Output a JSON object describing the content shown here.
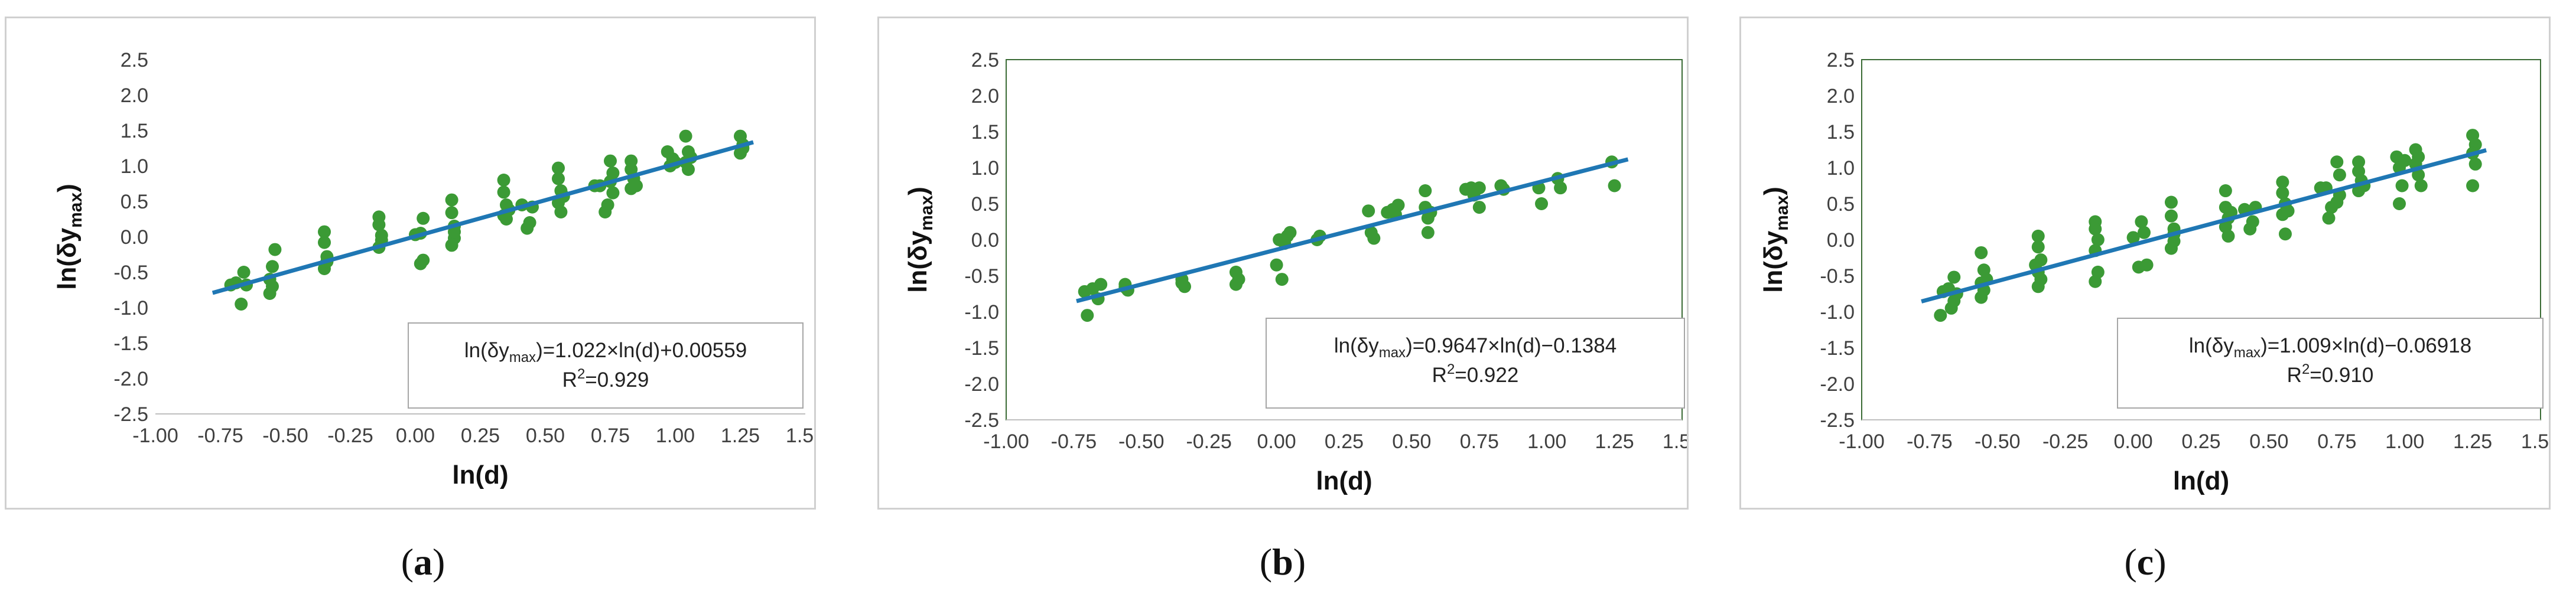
{
  "chart_data": [
    {
      "type": "scatter",
      "panel_label": "a",
      "xlabel": "ln(d)",
      "ylabel": "ln(δy",
      "ylabel_sub": "max",
      "ylabel_close": ")",
      "xlim": [
        -1.0,
        1.5
      ],
      "ylim": [
        -2.5,
        2.5
      ],
      "xticks": [
        "-1.00",
        "-0.75",
        "-0.50",
        "-0.25",
        "0.00",
        "0.25",
        "0.50",
        "0.75",
        "1.00",
        "1.25",
        "1.50"
      ],
      "yticks": [
        "2.5",
        "2.0",
        "1.5",
        "1.0",
        "0.5",
        "0.0",
        "-0.5",
        "-1.0",
        "-1.5",
        "-2.0",
        "-2.5"
      ],
      "point_color": "#3b9a35",
      "line_color": "#1f77b4",
      "fit": {
        "slope": 1.022,
        "intercept": 0.00559,
        "x_range": [
          -0.78,
          1.3
        ]
      },
      "equation": {
        "lhs": "ln(δy",
        "sub": "max",
        "rhs": ")=1.022×ln(d)+0.00559"
      },
      "r2": {
        "prefix": "R",
        "sup": "2",
        "value": "=0.929"
      },
      "series": [
        {
          "name": "data",
          "points": [
            [
              -0.71,
              -0.68
            ],
            [
              -0.69,
              -0.65
            ],
            [
              -0.67,
              -0.95
            ],
            [
              -0.66,
              -0.5
            ],
            [
              -0.65,
              -0.68
            ],
            [
              -0.56,
              -0.6
            ],
            [
              -0.56,
              -0.8
            ],
            [
              -0.55,
              -0.42
            ],
            [
              -0.54,
              -0.18
            ],
            [
              -0.55,
              -0.7
            ],
            [
              -0.35,
              0.07
            ],
            [
              -0.35,
              -0.08
            ],
            [
              -0.34,
              -0.28
            ],
            [
              -0.35,
              -0.45
            ],
            [
              -0.34,
              -0.35
            ],
            [
              -0.14,
              0.28
            ],
            [
              -0.14,
              0.17
            ],
            [
              -0.13,
              0.02
            ],
            [
              -0.14,
              -0.15
            ],
            [
              -0.13,
              -0.05
            ],
            [
              0.0,
              0.03
            ],
            [
              0.02,
              0.05
            ],
            [
              0.03,
              -0.33
            ],
            [
              0.02,
              -0.38
            ],
            [
              0.03,
              0.26
            ],
            [
              0.14,
              0.52
            ],
            [
              0.14,
              0.34
            ],
            [
              0.15,
              0.15
            ],
            [
              0.15,
              -0.02
            ],
            [
              0.14,
              -0.12
            ],
            [
              0.15,
              0.07
            ],
            [
              0.34,
              0.8
            ],
            [
              0.34,
              0.63
            ],
            [
              0.35,
              0.45
            ],
            [
              0.34,
              0.3
            ],
            [
              0.35,
              0.25
            ],
            [
              0.36,
              0.38
            ],
            [
              0.41,
              0.45
            ],
            [
              0.43,
              0.12
            ],
            [
              0.44,
              0.2
            ],
            [
              0.45,
              0.42
            ],
            [
              0.55,
              0.97
            ],
            [
              0.55,
              0.82
            ],
            [
              0.56,
              0.65
            ],
            [
              0.55,
              0.48
            ],
            [
              0.56,
              0.35
            ],
            [
              0.57,
              0.57
            ],
            [
              0.69,
              0.72
            ],
            [
              0.71,
              0.72
            ],
            [
              0.73,
              0.35
            ],
            [
              0.74,
              0.45
            ],
            [
              0.75,
              1.07
            ],
            [
              0.76,
              0.9
            ],
            [
              0.76,
              0.62
            ],
            [
              0.75,
              0.78
            ],
            [
              0.83,
              1.07
            ],
            [
              0.83,
              0.95
            ],
            [
              0.84,
              0.82
            ],
            [
              0.83,
              0.68
            ],
            [
              0.85,
              0.72
            ],
            [
              0.97,
              1.2
            ],
            [
              0.98,
              1.0
            ],
            [
              0.99,
              1.1
            ],
            [
              1.0,
              1.05
            ],
            [
              1.04,
              1.42
            ],
            [
              1.05,
              1.2
            ],
            [
              1.04,
              1.05
            ],
            [
              1.05,
              0.95
            ],
            [
              1.06,
              1.12
            ],
            [
              1.25,
              1.42
            ],
            [
              1.26,
              1.3
            ],
            [
              1.25,
              1.18
            ],
            [
              1.26,
              1.25
            ]
          ]
        }
      ]
    },
    {
      "type": "scatter",
      "panel_label": "b",
      "xlabel": "ln(d)",
      "ylabel": "ln(δy",
      "ylabel_sub": "max",
      "ylabel_close": ")",
      "xlim": [
        -1.0,
        1.5
      ],
      "ylim": [
        -2.5,
        2.5
      ],
      "xticks": [
        "-1.00",
        "-0.75",
        "-0.50",
        "-0.25",
        "0.00",
        "0.25",
        "0.50",
        "0.75",
        "1.00",
        "1.25",
        "1.50"
      ],
      "yticks": [
        "2.5",
        "2.0",
        "1.5",
        "1.0",
        "0.5",
        "0.0",
        "-0.5",
        "-1.0",
        "-1.5",
        "-2.0",
        "-2.5"
      ],
      "point_color": "#3b9a35",
      "line_color": "#1f77b4",
      "fit": {
        "slope": 0.9647,
        "intercept": -0.1384,
        "x_range": [
          -0.74,
          1.3
        ]
      },
      "equation": {
        "lhs": "ln(δy",
        "sub": "max",
        "rhs": ")=0.9647×ln(d)−0.1384"
      },
      "r2": {
        "prefix": "R",
        "sup": "2",
        "value": "=0.922"
      },
      "series": [
        {
          "name": "data",
          "points": [
            [
              -0.71,
              -0.72
            ],
            [
              -0.7,
              -1.05
            ],
            [
              -0.68,
              -0.68
            ],
            [
              -0.66,
              -0.82
            ],
            [
              -0.65,
              -0.62
            ],
            [
              -0.56,
              -0.62
            ],
            [
              -0.55,
              -0.7
            ],
            [
              -0.56,
              -0.66
            ],
            [
              -0.35,
              -0.55
            ],
            [
              -0.34,
              -0.65
            ],
            [
              -0.35,
              -0.6
            ],
            [
              -0.15,
              -0.45
            ],
            [
              -0.14,
              -0.55
            ],
            [
              -0.15,
              -0.62
            ],
            [
              0.0,
              -0.35
            ],
            [
              0.01,
              0.0
            ],
            [
              0.02,
              -0.55
            ],
            [
              0.04,
              0.05
            ],
            [
              0.05,
              0.1
            ],
            [
              0.03,
              -0.05
            ],
            [
              0.15,
              0.0
            ],
            [
              0.16,
              0.05
            ],
            [
              0.34,
              0.4
            ],
            [
              0.35,
              0.1
            ],
            [
              0.36,
              0.02
            ],
            [
              0.41,
              0.38
            ],
            [
              0.43,
              0.42
            ],
            [
              0.45,
              0.48
            ],
            [
              0.44,
              0.35
            ],
            [
              0.55,
              0.68
            ],
            [
              0.55,
              0.45
            ],
            [
              0.56,
              0.3
            ],
            [
              0.57,
              0.38
            ],
            [
              0.56,
              0.1
            ],
            [
              0.7,
              0.7
            ],
            [
              0.72,
              0.72
            ],
            [
              0.73,
              0.62
            ],
            [
              0.75,
              0.72
            ],
            [
              0.75,
              0.45
            ],
            [
              0.83,
              0.75
            ],
            [
              0.84,
              0.7
            ],
            [
              0.97,
              0.72
            ],
            [
              0.98,
              0.5
            ],
            [
              1.04,
              0.85
            ],
            [
              1.05,
              0.72
            ],
            [
              1.24,
              1.08
            ],
            [
              1.25,
              0.75
            ]
          ]
        }
      ]
    },
    {
      "type": "scatter",
      "panel_label": "c",
      "xlabel": "ln(d)",
      "ylabel": "ln(δy",
      "ylabel_sub": "max",
      "ylabel_close": ")",
      "xlim": [
        -1.0,
        1.5
      ],
      "ylim": [
        -2.5,
        2.5
      ],
      "xticks": [
        "-1.00",
        "-0.75",
        "-0.50",
        "-0.25",
        "0.00",
        "0.25",
        "0.50",
        "0.75",
        "1.00",
        "1.25",
        "1.50"
      ],
      "yticks": [
        "2.5",
        "2.0",
        "1.5",
        "1.0",
        "0.5",
        "0.0",
        "-0.5",
        "-1.0",
        "-1.5",
        "-2.0",
        "-2.5"
      ],
      "point_color": "#3b9a35",
      "line_color": "#1f77b4",
      "fit": {
        "slope": 1.009,
        "intercept": -0.06918,
        "x_range": [
          -0.78,
          1.3
        ]
      },
      "equation": {
        "lhs": "ln(δy",
        "sub": "max",
        "rhs": ")=1.009×ln(d)−0.06918"
      },
      "r2": {
        "prefix": "R",
        "sup": "2",
        "value": "=0.910"
      },
      "series": [
        {
          "name": "data",
          "points": [
            [
              -0.71,
              -1.05
            ],
            [
              -0.7,
              -0.72
            ],
            [
              -0.68,
              -0.68
            ],
            [
              -0.67,
              -0.95
            ],
            [
              -0.66,
              -0.85
            ],
            [
              -0.66,
              -0.52
            ],
            [
              -0.65,
              -0.75
            ],
            [
              -0.56,
              -0.18
            ],
            [
              -0.55,
              -0.42
            ],
            [
              -0.56,
              -0.6
            ],
            [
              -0.55,
              -0.7
            ],
            [
              -0.56,
              -0.8
            ],
            [
              -0.54,
              -0.55
            ],
            [
              -0.35,
              0.05
            ],
            [
              -0.35,
              -0.1
            ],
            [
              -0.34,
              -0.28
            ],
            [
              -0.35,
              -0.45
            ],
            [
              -0.34,
              -0.55
            ],
            [
              -0.35,
              -0.65
            ],
            [
              -0.36,
              -0.35
            ],
            [
              -0.14,
              0.25
            ],
            [
              -0.14,
              0.15
            ],
            [
              -0.13,
              0.0
            ],
            [
              -0.14,
              -0.15
            ],
            [
              -0.13,
              -0.45
            ],
            [
              -0.14,
              -0.58
            ],
            [
              0.0,
              0.03
            ],
            [
              0.02,
              -0.38
            ],
            [
              0.03,
              0.25
            ],
            [
              0.05,
              -0.35
            ],
            [
              0.04,
              0.1
            ],
            [
              0.14,
              0.52
            ],
            [
              0.14,
              0.33
            ],
            [
              0.15,
              0.15
            ],
            [
              0.15,
              -0.02
            ],
            [
              0.14,
              -0.12
            ],
            [
              0.15,
              0.08
            ],
            [
              0.34,
              0.68
            ],
            [
              0.34,
              0.45
            ],
            [
              0.35,
              0.3
            ],
            [
              0.34,
              0.18
            ],
            [
              0.35,
              0.05
            ],
            [
              0.36,
              0.38
            ],
            [
              0.41,
              0.42
            ],
            [
              0.43,
              0.15
            ],
            [
              0.44,
              0.25
            ],
            [
              0.45,
              0.45
            ],
            [
              0.55,
              0.8
            ],
            [
              0.55,
              0.65
            ],
            [
              0.56,
              0.5
            ],
            [
              0.55,
              0.35
            ],
            [
              0.56,
              0.08
            ],
            [
              0.57,
              0.4
            ],
            [
              0.69,
              0.72
            ],
            [
              0.71,
              0.72
            ],
            [
              0.72,
              0.3
            ],
            [
              0.73,
              0.45
            ],
            [
              0.75,
              1.08
            ],
            [
              0.76,
              0.9
            ],
            [
              0.76,
              0.62
            ],
            [
              0.75,
              0.52
            ],
            [
              0.83,
              1.08
            ],
            [
              0.83,
              0.95
            ],
            [
              0.84,
              0.82
            ],
            [
              0.83,
              0.68
            ],
            [
              0.85,
              0.75
            ],
            [
              0.97,
              1.15
            ],
            [
              0.98,
              1.0
            ],
            [
              0.99,
              0.75
            ],
            [
              0.98,
              0.5
            ],
            [
              1.0,
              1.1
            ],
            [
              1.04,
              1.25
            ],
            [
              1.05,
              1.15
            ],
            [
              1.04,
              1.05
            ],
            [
              1.05,
              0.9
            ],
            [
              1.06,
              0.75
            ],
            [
              1.25,
              1.45
            ],
            [
              1.26,
              1.32
            ],
            [
              1.25,
              1.2
            ],
            [
              1.26,
              1.05
            ],
            [
              1.25,
              0.75
            ]
          ]
        }
      ]
    }
  ]
}
